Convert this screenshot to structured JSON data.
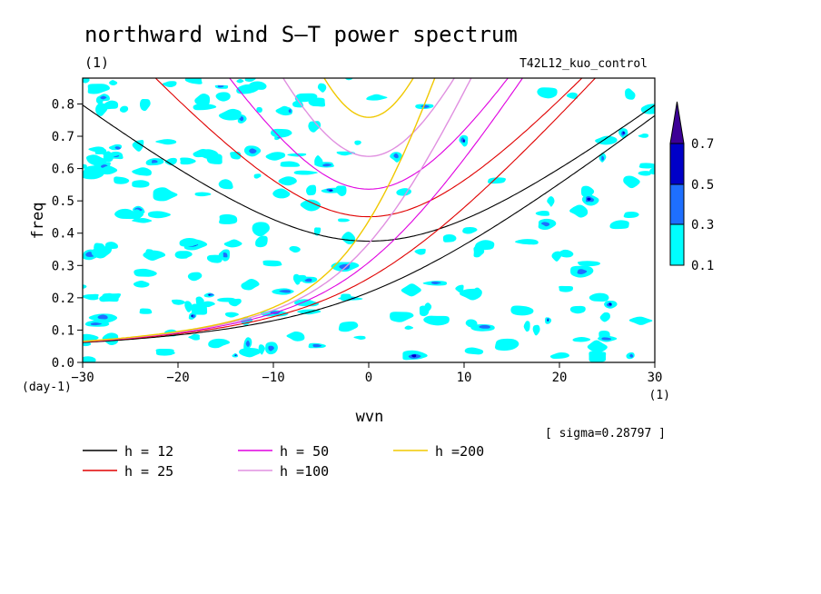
{
  "chart_data": {
    "type": "contour",
    "title": "northward wind S–T power spectrum",
    "units_label": "(1)",
    "run_label": "T42L12_kuo_control",
    "xlabel": "wvn",
    "x_units": "(1)",
    "ylabel": "freq",
    "y_units": "(day-1)",
    "xlim": [
      -30,
      30
    ],
    "ylim": [
      0,
      0.88
    ],
    "x_ticks": [
      "−30",
      "−20",
      "−10",
      "0",
      "10",
      "20",
      "30"
    ],
    "x_tick_values": [
      -30,
      -20,
      -10,
      0,
      10,
      20,
      30
    ],
    "y_ticks": [
      "0.0",
      "0.1",
      "0.2",
      "0.3",
      "0.4",
      "0.5",
      "0.6",
      "0.7",
      "0.8"
    ],
    "y_tick_values": [
      0,
      0.1,
      0.2,
      0.3,
      0.4,
      0.5,
      0.6,
      0.7,
      0.8
    ],
    "sigma_note": "[ sigma=0.28797 ]",
    "colorbar": {
      "levels": [
        "0.1",
        "0.3",
        "0.5",
        "0.7"
      ],
      "colors": [
        "#00ffff",
        "#1e6fff",
        "#0000c8",
        "#3c0096"
      ]
    },
    "dispersion_series": [
      {
        "name": "h = 12",
        "color": "#000000"
      },
      {
        "name": "h = 25",
        "color": "#e00000"
      },
      {
        "name": "h = 50",
        "color": "#e000e0"
      },
      {
        "name": "h =100",
        "color": "#e090e0"
      },
      {
        "name": "h =200",
        "color": "#f0c800"
      }
    ]
  }
}
